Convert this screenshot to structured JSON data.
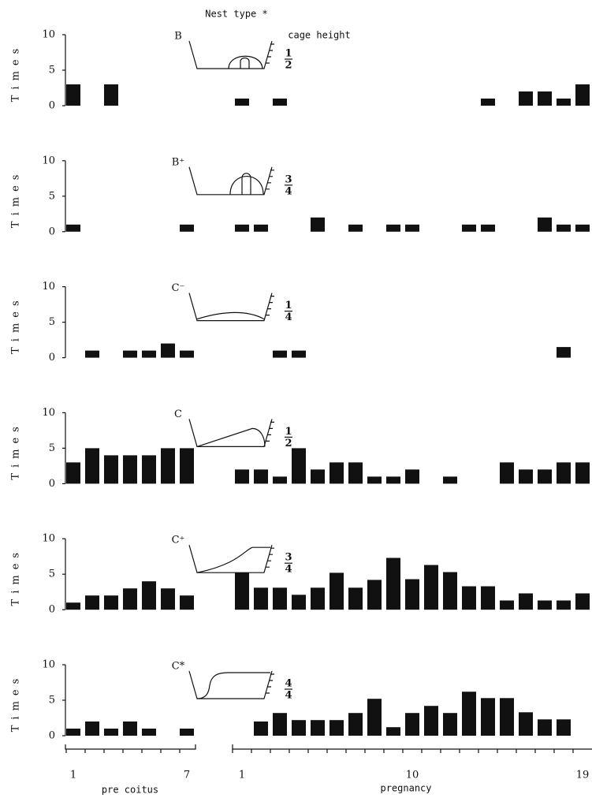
{
  "header": {
    "nest_type": "Nest type *",
    "cage_height": "cage height"
  },
  "chart_data": [
    {
      "type": "bar",
      "nest_type": "B",
      "cage_height": {
        "num": "1",
        "den": "2"
      },
      "ylabel": "Times",
      "ylim": [
        0,
        10
      ],
      "yticks": [
        0,
        5,
        10
      ],
      "color": "#111111",
      "values": [
        3,
        0,
        3,
        0,
        0,
        0,
        0,
        1,
        0,
        1,
        0,
        0,
        0,
        0,
        0,
        0,
        0,
        0,
        0,
        0,
        1,
        0,
        2,
        2,
        1,
        3
      ]
    },
    {
      "type": "bar",
      "nest_type": "B⁺",
      "cage_height": {
        "num": "3",
        "den": "4"
      },
      "ylabel": "Times",
      "ylim": [
        0,
        10
      ],
      "yticks": [
        0,
        5,
        10
      ],
      "color": "#111111",
      "values": [
        1,
        0,
        0,
        0,
        0,
        0,
        1,
        1,
        1,
        0,
        0,
        2,
        0,
        1,
        0,
        1,
        1,
        0,
        0,
        1,
        1,
        0,
        0,
        2,
        1,
        1
      ]
    },
    {
      "type": "bar",
      "nest_type": "C⁻",
      "cage_height": {
        "num": "1",
        "den": "4"
      },
      "ylabel": "Times",
      "ylim": [
        0,
        10
      ],
      "yticks": [
        0,
        5,
        10
      ],
      "color": "#111111",
      "values": [
        0,
        1,
        0,
        1,
        1,
        2,
        1,
        0,
        0,
        1,
        1,
        0,
        0,
        0,
        0,
        0,
        0,
        0,
        0,
        0,
        0,
        0,
        0,
        0,
        1.5,
        0
      ]
    },
    {
      "type": "bar",
      "nest_type": "C",
      "cage_height": {
        "num": "1",
        "den": "2"
      },
      "ylabel": "Times",
      "ylim": [
        0,
        10
      ],
      "yticks": [
        0,
        5,
        10
      ],
      "color": "#111111",
      "values": [
        3,
        5,
        4,
        4,
        4,
        5,
        5,
        2,
        2,
        1,
        5,
        2,
        3,
        3,
        1,
        1,
        2,
        0,
        1,
        0,
        0,
        3,
        2,
        2,
        3,
        3
      ]
    },
    {
      "type": "bar",
      "nest_type": "C⁺",
      "cage_height": {
        "num": "3",
        "den": "4"
      },
      "ylabel": "Times",
      "ylim": [
        0,
        10
      ],
      "yticks": [
        0,
        5,
        10
      ],
      "color": "#111111",
      "values": [
        1,
        2,
        2,
        3,
        4,
        3,
        2,
        5.2,
        3.1,
        3.1,
        2.1,
        3.1,
        5.2,
        3.1,
        4.2,
        7.3,
        4.3,
        6.3,
        5.3,
        3.3,
        3.3,
        1.3,
        2.3,
        1.3,
        1.3,
        2.3
      ]
    },
    {
      "type": "bar",
      "nest_type": "C*",
      "cage_height": {
        "num": "4",
        "den": "4"
      },
      "ylabel": "Times",
      "ylim": [
        0,
        10
      ],
      "yticks": [
        0,
        5,
        10
      ],
      "color": "#111111",
      "values": [
        1,
        2,
        1,
        2,
        1,
        0,
        1,
        0,
        2,
        3.2,
        2.2,
        2.2,
        2.2,
        3.2,
        5.2,
        1.2,
        3.2,
        4.2,
        3.2,
        6.2,
        5.3,
        5.3,
        3.3,
        2.3,
        2.3,
        0
      ]
    }
  ],
  "x_axis": {
    "categories": [
      "1",
      null,
      null,
      null,
      null,
      null,
      "7",
      "1",
      null,
      null,
      null,
      null,
      null,
      null,
      null,
      null,
      "10",
      null,
      null,
      null,
      null,
      null,
      null,
      null,
      null,
      "19"
    ],
    "groups": [
      "pre coitus",
      "pregnancy"
    ]
  }
}
